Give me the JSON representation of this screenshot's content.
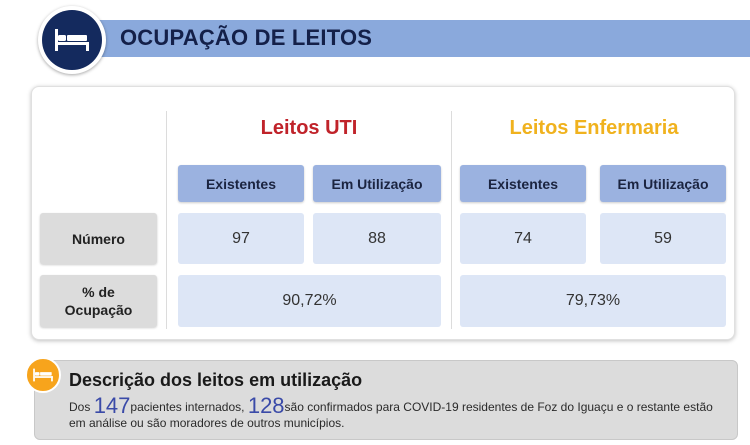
{
  "header": {
    "title": "OCUPAÇÃO DE LEITOS",
    "icon": "bed-icon"
  },
  "table": {
    "uti": {
      "title": "Leitos UTI",
      "col_existentes": "Existentes",
      "col_utilizacao": "Em Utilização",
      "numero_existentes": "97",
      "numero_utilizacao": "88",
      "ocupacao": "90,72%"
    },
    "enfermaria": {
      "title": "Leitos Enfermaria",
      "col_existentes": "Existentes",
      "col_utilizacao": "Em Utilização",
      "numero_existentes": "74",
      "numero_utilizacao": "59",
      "ocupacao": "79,73%"
    },
    "row_numero": "Número",
    "row_ocupacao_line1": "% de",
    "row_ocupacao_line2": "Ocupação"
  },
  "description": {
    "title": "Descrição dos leitos em utilização",
    "prefix": "Dos ",
    "internados": "147",
    "mid1": "pacientes internados, ",
    "confirmados": "128",
    "rest": "são confirmados para COVID-19 residentes de Foz do Iguaçu e o restante estão em análise ou são moradores de outros municípios.",
    "icon": "bed-icon"
  },
  "colors": {
    "header_bar": "#8aa9dc",
    "uti_title": "#c0232a",
    "enfermaria_title": "#f0b21e",
    "column_header": "#9bb2e0",
    "cell": "#dde6f6",
    "row_header": "#dcdcdc"
  }
}
